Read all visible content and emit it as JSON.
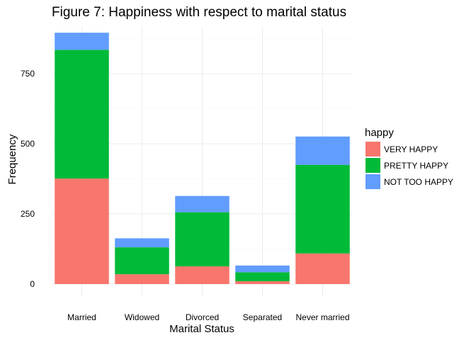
{
  "chart_data": {
    "type": "bar",
    "stacked": true,
    "title": "Figure 7: Happiness with respect to marital status",
    "xlabel": "Marital Status",
    "ylabel": "Frequency",
    "categories": [
      "Married",
      "Widowed",
      "Divorced",
      "Separated",
      "Never married"
    ],
    "series": [
      {
        "name": "VERY HAPPY",
        "color": "#F8766D",
        "values": [
          376,
          35,
          63,
          10,
          109
        ]
      },
      {
        "name": "PRETTY HAPPY",
        "color": "#00BA38",
        "values": [
          459,
          96,
          193,
          32,
          316
        ]
      },
      {
        "name": "NOT TOO HAPPY",
        "color": "#619CFF",
        "values": [
          61,
          32,
          58,
          24,
          101
        ]
      }
    ],
    "ylim": [
      0,
      900
    ],
    "yticks": [
      0,
      250,
      500,
      750
    ],
    "legend": {
      "title": "happy",
      "position": "right"
    },
    "grid": true
  }
}
